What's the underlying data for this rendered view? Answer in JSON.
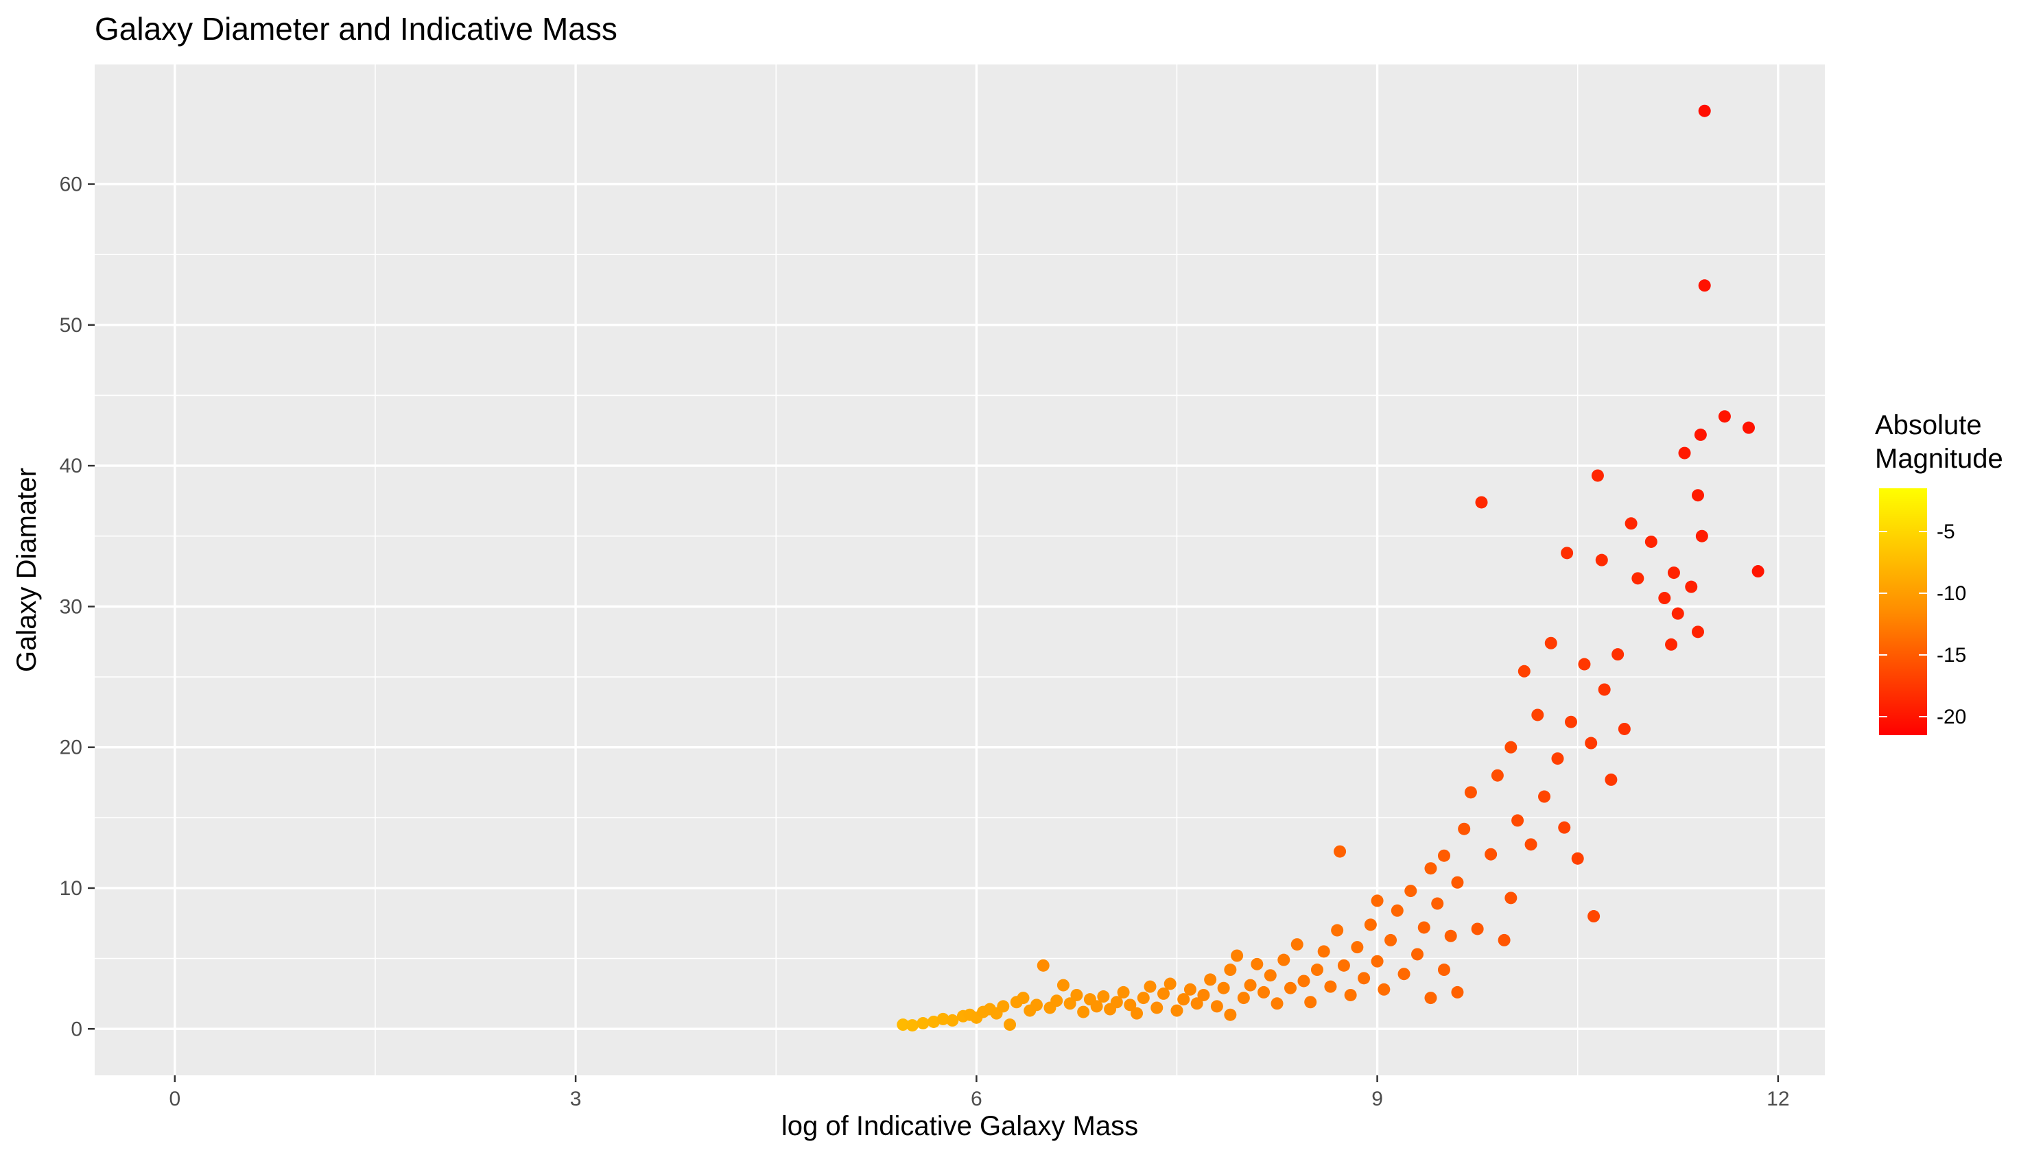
{
  "chart_data": {
    "type": "scatter",
    "title": "Galaxy Diameter and Indicative Mass",
    "xlabel": "log of Indicative Galaxy Mass",
    "ylabel": "Galaxy Diamater",
    "xlim": [
      -0.6,
      12.35
    ],
    "ylim": [
      -3.3,
      68.5
    ],
    "x_ticks": [
      0,
      3,
      6,
      9,
      12
    ],
    "y_ticks": [
      0,
      10,
      20,
      30,
      40,
      50,
      60
    ],
    "grid": true,
    "legend": {
      "title": "Absolute Magnitude",
      "title_lines": [
        "Absolute",
        "Magnitude"
      ],
      "placement": "right",
      "ticks": [
        -5,
        -10,
        -15,
        -20
      ],
      "range": [
        -21.5,
        -1.5
      ],
      "color_low": "#ff0000",
      "color_mid": "#ff8c00",
      "color_high": "#ffff00"
    },
    "colors": {
      "panel": "#ebebeb",
      "grid": "#ffffff"
    },
    "points": [
      [
        5.45,
        0.3,
        -7.6
      ],
      [
        5.52,
        0.25,
        -7.8
      ],
      [
        5.6,
        0.4,
        -8.0
      ],
      [
        5.68,
        0.5,
        -8.2
      ],
      [
        5.75,
        0.7,
        -8.5
      ],
      [
        5.82,
        0.6,
        -8.6
      ],
      [
        5.9,
        0.9,
        -8.8
      ],
      [
        5.95,
        1.0,
        -9.0
      ],
      [
        6.0,
        0.8,
        -9.1
      ],
      [
        6.05,
        1.2,
        -9.3
      ],
      [
        6.1,
        1.4,
        -9.4
      ],
      [
        6.15,
        1.1,
        -9.5
      ],
      [
        6.2,
        1.6,
        -9.7
      ],
      [
        6.25,
        0.3,
        -9.8
      ],
      [
        6.3,
        1.9,
        -9.9
      ],
      [
        6.35,
        2.2,
        -10.0
      ],
      [
        6.4,
        1.3,
        -10.1
      ],
      [
        6.45,
        1.7,
        -10.2
      ],
      [
        6.5,
        4.5,
        -11.5
      ],
      [
        6.55,
        1.5,
        -10.3
      ],
      [
        6.6,
        2.0,
        -10.4
      ],
      [
        6.65,
        3.1,
        -10.8
      ],
      [
        6.7,
        1.8,
        -10.5
      ],
      [
        6.75,
        2.4,
        -10.6
      ],
      [
        6.8,
        1.2,
        -10.6
      ],
      [
        6.85,
        2.1,
        -10.7
      ],
      [
        6.9,
        1.6,
        -10.8
      ],
      [
        6.95,
        2.3,
        -10.9
      ],
      [
        7.0,
        1.4,
        -11.0
      ],
      [
        7.05,
        1.9,
        -11.0
      ],
      [
        7.1,
        2.6,
        -11.1
      ],
      [
        7.15,
        1.7,
        -11.2
      ],
      [
        7.2,
        1.1,
        -11.2
      ],
      [
        7.25,
        2.2,
        -11.3
      ],
      [
        7.3,
        3.0,
        -11.4
      ],
      [
        7.35,
        1.5,
        -11.4
      ],
      [
        7.4,
        2.5,
        -11.5
      ],
      [
        7.45,
        3.2,
        -11.6
      ],
      [
        7.5,
        1.3,
        -11.6
      ],
      [
        7.55,
        2.1,
        -11.7
      ],
      [
        7.6,
        2.8,
        -11.8
      ],
      [
        7.65,
        1.8,
        -11.8
      ],
      [
        7.7,
        2.4,
        -11.9
      ],
      [
        7.75,
        3.5,
        -12.0
      ],
      [
        7.8,
        1.6,
        -12.0
      ],
      [
        7.85,
        2.9,
        -12.1
      ],
      [
        7.9,
        4.2,
        -12.2
      ],
      [
        7.95,
        5.2,
        -12.3
      ],
      [
        7.9,
        1.0,
        -12.0
      ],
      [
        8.0,
        2.2,
        -12.3
      ],
      [
        8.05,
        3.1,
        -12.4
      ],
      [
        8.1,
        4.6,
        -12.5
      ],
      [
        8.15,
        2.6,
        -12.5
      ],
      [
        8.2,
        3.8,
        -12.6
      ],
      [
        8.25,
        1.8,
        -12.6
      ],
      [
        8.3,
        4.9,
        -12.8
      ],
      [
        8.35,
        2.9,
        -12.8
      ],
      [
        8.4,
        6.0,
        -13.0
      ],
      [
        8.45,
        3.4,
        -13.0
      ],
      [
        8.5,
        1.9,
        -12.9
      ],
      [
        8.55,
        4.2,
        -13.1
      ],
      [
        8.6,
        5.5,
        -13.2
      ],
      [
        8.65,
        3.0,
        -13.2
      ],
      [
        8.7,
        7.0,
        -13.4
      ],
      [
        8.72,
        12.6,
        -14.6
      ],
      [
        8.75,
        4.5,
        -13.4
      ],
      [
        8.8,
        2.4,
        -13.3
      ],
      [
        8.85,
        5.8,
        -13.6
      ],
      [
        8.9,
        3.6,
        -13.6
      ],
      [
        8.95,
        7.4,
        -13.8
      ],
      [
        9.0,
        4.8,
        -13.8
      ],
      [
        9.0,
        9.1,
        -14.1
      ],
      [
        9.05,
        2.8,
        -13.7
      ],
      [
        9.1,
        6.3,
        -14.0
      ],
      [
        9.15,
        8.4,
        -14.2
      ],
      [
        9.2,
        3.9,
        -14.0
      ],
      [
        9.25,
        9.8,
        -14.4
      ],
      [
        9.3,
        5.3,
        -14.3
      ],
      [
        9.35,
        7.2,
        -14.5
      ],
      [
        9.4,
        11.4,
        -14.8
      ],
      [
        9.4,
        2.2,
        -14.2
      ],
      [
        9.45,
        8.9,
        -14.7
      ],
      [
        9.5,
        12.3,
        -15.0
      ],
      [
        9.5,
        4.2,
        -14.6
      ],
      [
        9.55,
        6.6,
        -14.8
      ],
      [
        9.6,
        10.4,
        -15.1
      ],
      [
        9.6,
        2.6,
        -14.6
      ],
      [
        9.65,
        14.2,
        -15.4
      ],
      [
        9.7,
        16.8,
        -15.6
      ],
      [
        9.75,
        7.1,
        -15.2
      ],
      [
        9.78,
        37.4,
        -18.6
      ],
      [
        9.85,
        12.4,
        -15.7
      ],
      [
        9.9,
        18.0,
        -16.0
      ],
      [
        9.95,
        6.3,
        -15.4
      ],
      [
        10.0,
        20.0,
        -16.3
      ],
      [
        10.0,
        9.3,
        -15.7
      ],
      [
        10.05,
        14.8,
        -16.2
      ],
      [
        10.1,
        25.4,
        -16.8
      ],
      [
        10.15,
        13.1,
        -16.2
      ],
      [
        10.2,
        22.3,
        -16.8
      ],
      [
        10.25,
        16.5,
        -16.6
      ],
      [
        10.3,
        27.4,
        -17.3
      ],
      [
        10.35,
        19.2,
        -17.0
      ],
      [
        10.4,
        14.3,
        -16.8
      ],
      [
        10.45,
        21.8,
        -17.2
      ],
      [
        10.42,
        33.8,
        -18.2
      ],
      [
        10.5,
        12.1,
        -16.9
      ],
      [
        10.55,
        25.9,
        -17.6
      ],
      [
        10.6,
        20.3,
        -17.4
      ],
      [
        10.62,
        8.0,
        -16.4
      ],
      [
        10.65,
        39.3,
        -18.8
      ],
      [
        10.68,
        33.3,
        -18.4
      ],
      [
        10.7,
        24.1,
        -17.8
      ],
      [
        10.75,
        17.7,
        -17.5
      ],
      [
        10.8,
        26.6,
        -18.1
      ],
      [
        10.85,
        21.3,
        -17.9
      ],
      [
        10.9,
        35.9,
        -18.8
      ],
      [
        10.95,
        32.0,
        -18.6
      ],
      [
        11.05,
        34.6,
        -18.9
      ],
      [
        11.15,
        30.6,
        -18.9
      ],
      [
        11.2,
        27.3,
        -18.8
      ],
      [
        11.22,
        32.4,
        -19.1
      ],
      [
        11.25,
        29.5,
        -19.0
      ],
      [
        11.3,
        40.9,
        -19.7
      ],
      [
        11.35,
        31.4,
        -19.2
      ],
      [
        11.4,
        37.9,
        -19.6
      ],
      [
        11.4,
        28.2,
        -19.1
      ],
      [
        11.42,
        42.2,
        -19.9
      ],
      [
        11.43,
        35.0,
        -19.5
      ],
      [
        11.45,
        65.2,
        -20.6
      ],
      [
        11.45,
        52.8,
        -20.2
      ],
      [
        11.6,
        43.5,
        -20.1
      ],
      [
        11.78,
        42.7,
        -20.2
      ],
      [
        11.85,
        32.5,
        -20.0
      ]
    ]
  }
}
